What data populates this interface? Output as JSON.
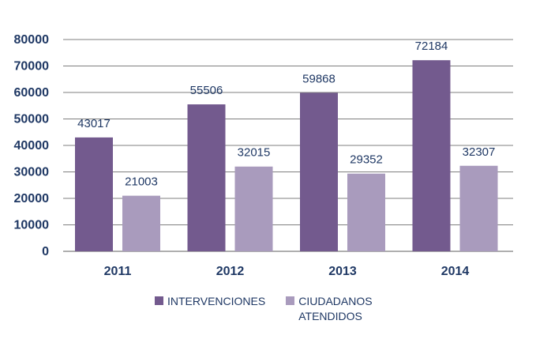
{
  "chart_data": {
    "type": "bar",
    "categories": [
      "2011",
      "2012",
      "2013",
      "2014"
    ],
    "series": [
      {
        "name": "INTERVENCIONES",
        "values": [
          43017,
          55506,
          59868,
          72184
        ],
        "color": "#735a8e"
      },
      {
        "name": "CIUDADANOS ATENDIDOS",
        "values": [
          21003,
          32015,
          29352,
          32307
        ],
        "color": "#a99bbd"
      }
    ],
    "ylim": [
      0,
      80000
    ],
    "yticks": [
      0,
      10000,
      20000,
      30000,
      40000,
      50000,
      60000,
      70000,
      80000
    ],
    "grid": true,
    "legend_position": "bottom",
    "data_labels": true,
    "colors": {
      "text": "#1f3864",
      "grid": "#7f7f7f"
    }
  }
}
